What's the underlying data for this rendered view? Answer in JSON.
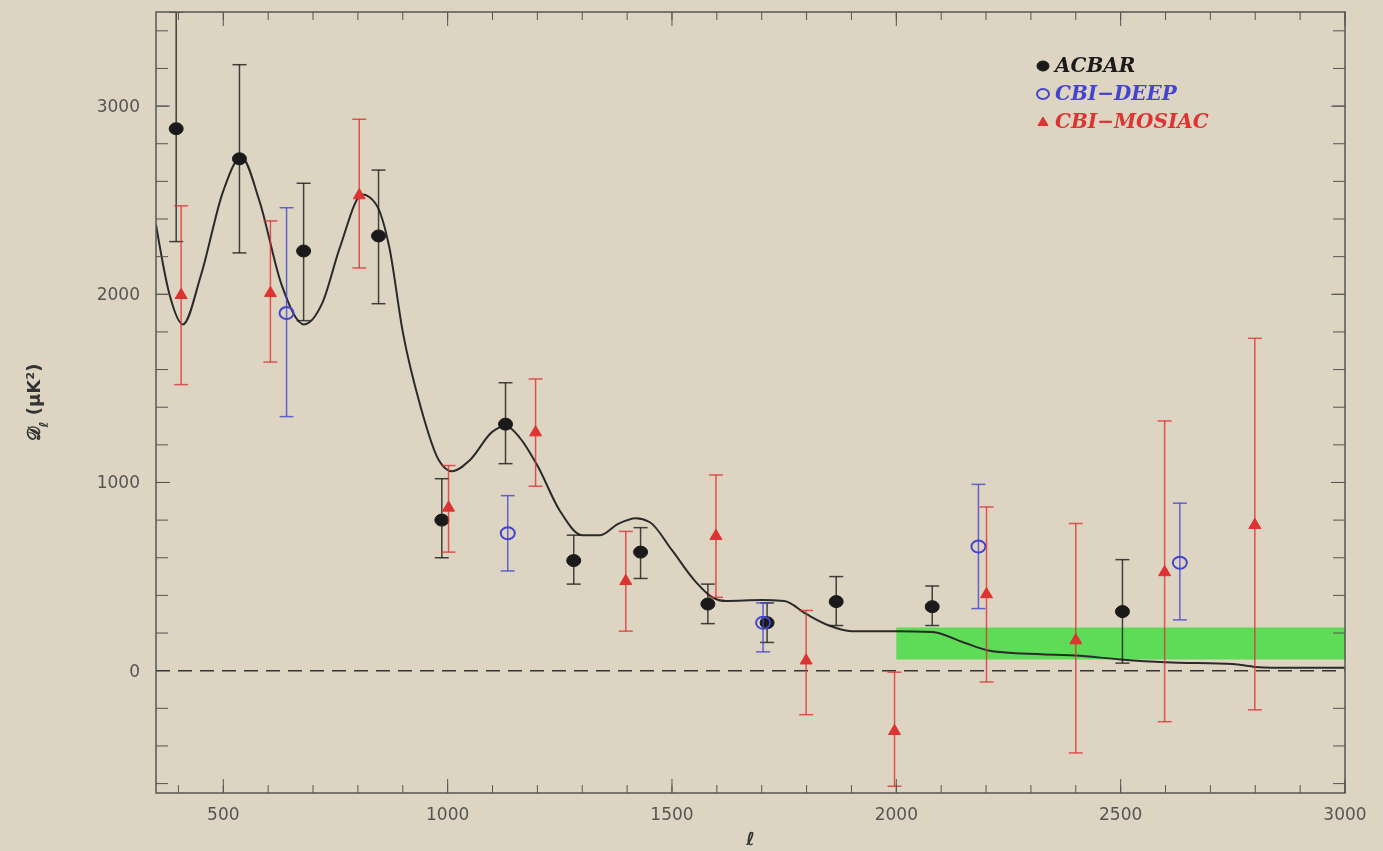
{
  "chart_data": {
    "type": "scatter",
    "xlabel": "ℓ",
    "ylabel": "𝒟$_{ℓ}$ (μK²)",
    "xlim": [
      350,
      3000
    ],
    "xticks": [
      500,
      1000,
      1500,
      2000,
      2500,
      3000
    ],
    "ylim": [
      -650,
      3500
    ],
    "yticks": [
      0,
      1000,
      2000,
      3000
    ],
    "grid": false,
    "legend": "top right",
    "ref_lines": [
      {
        "axis": "y",
        "value": 0,
        "line_style": "dashed",
        "color": "#333333"
      }
    ],
    "series": [
      {
        "type": "line",
        "color": "#33dd33",
        "marker": "none",
        "x": [
          2000,
          3000
        ],
        "values": [
          null,
          null
        ],
        "lower": [
          60,
          60
        ],
        "upper": [
          230,
          230
        ]
      },
      {
        "type": "line",
        "color": "#2a2a2a",
        "marker": "none",
        "line_style": "solid",
        "x": [
          350,
          380,
          410,
          450,
          500,
          540,
          580,
          630,
          680,
          720,
          760,
          810,
          840,
          870,
          900,
          940,
          980,
          1010,
          1050,
          1100,
          1130,
          1160,
          1200,
          1250,
          1300,
          1340,
          1380,
          1420,
          1450,
          1500,
          1550,
          1590,
          1620,
          1700,
          1750,
          1800,
          1850,
          1900,
          2000,
          2080,
          2150,
          2200,
          2250,
          2400,
          2500,
          2600,
          2750,
          2800,
          2850,
          3000
        ],
        "values": [
          2370,
          2000,
          1840,
          2100,
          2550,
          2730,
          2500,
          2050,
          1840,
          1950,
          2250,
          2530,
          2480,
          2250,
          1800,
          1400,
          1120,
          1060,
          1120,
          1270,
          1300,
          1240,
          1090,
          850,
          720,
          720,
          780,
          810,
          790,
          640,
          480,
          390,
          370,
          375,
          370,
          300,
          240,
          210,
          210,
          205,
          150,
          110,
          95,
          80,
          60,
          45,
          35,
          20,
          15,
          15
        ]
      },
      {
        "name": "ACBAR",
        "color": "#1a1a1a",
        "marker": "circle",
        "x": [
          395,
          536,
          679,
          846,
          987,
          1129,
          1281,
          1430,
          1580,
          1712,
          1866,
          2080,
          2504
        ],
        "values": [
          2880,
          2720,
          2230,
          2310,
          800,
          1310,
          585,
          630,
          354,
          255,
          367,
          340,
          314
        ],
        "errors": [
          [
            2280,
            3500
          ],
          [
            2220,
            3220
          ],
          [
            1860,
            2590
          ],
          [
            1950,
            2660
          ],
          [
            600,
            1020
          ],
          [
            1100,
            1530
          ],
          [
            460,
            720
          ],
          [
            490,
            760
          ],
          [
            250,
            460
          ],
          [
            150,
            360
          ],
          [
            240,
            500
          ],
          [
            240,
            450
          ],
          [
            40,
            590
          ]
        ]
      },
      {
        "name": "CBI−DEEP",
        "color": "#4444cc",
        "marker": "circle",
        "x": [
          641,
          1134,
          1703,
          2183,
          2632
        ],
        "values": [
          1900,
          730,
          255,
          660,
          574
        ],
        "errors": [
          [
            1350,
            2460
          ],
          [
            530,
            930
          ],
          [
            100,
            360
          ],
          [
            330,
            990
          ],
          [
            270,
            890
          ]
        ]
      },
      {
        "name": "CBI−MOSIAC",
        "color": "#dd3333",
        "marker": "triangle",
        "x": [
          406,
          605,
          803,
          1002,
          1196,
          1397,
          1598,
          1799,
          1996,
          2201,
          2400,
          2598,
          2799
        ],
        "values": [
          2000,
          2010,
          2530,
          870,
          1270,
          480,
          720,
          58,
          -317,
          410,
          165,
          527,
          778
        ],
        "errors": [
          [
            1520,
            2470
          ],
          [
            1640,
            2390
          ],
          [
            2140,
            2930
          ],
          [
            630,
            1090
          ],
          [
            980,
            1550
          ],
          [
            210,
            740
          ],
          [
            390,
            1040
          ],
          [
            -234,
            320
          ],
          [
            -614,
            -8
          ],
          [
            -60,
            870
          ],
          [
            -437,
            782
          ],
          [
            -271,
            1327
          ],
          [
            -208,
            1766
          ]
        ]
      }
    ]
  }
}
